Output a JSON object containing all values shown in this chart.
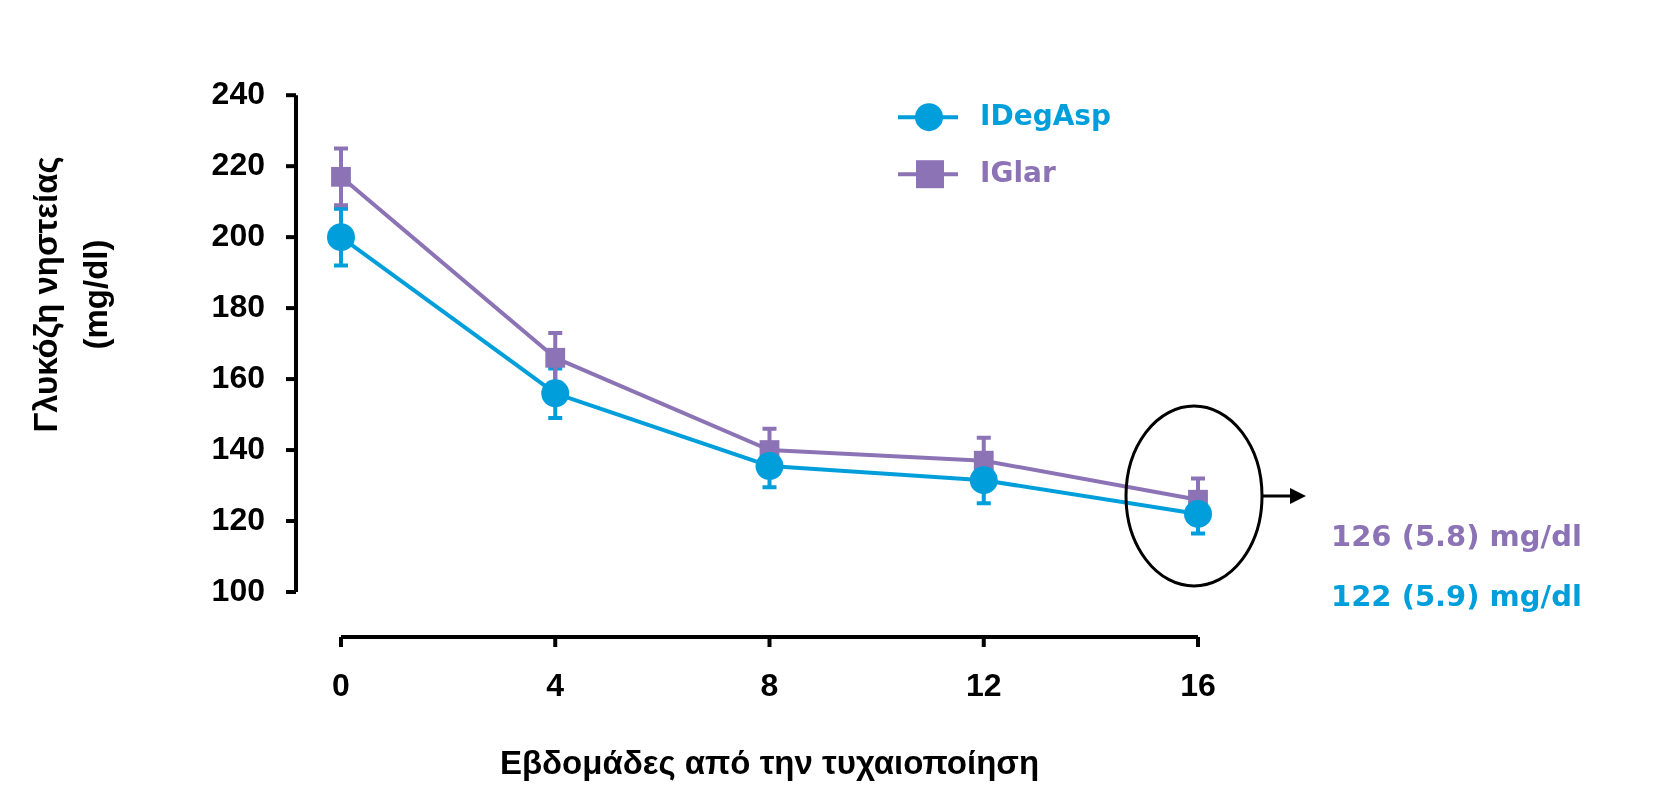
{
  "chart_data": {
    "type": "line",
    "xlabel": "Εβδομάδες από την τυχαιοποίηση",
    "ylabel": "Γλυκόζη νηστείας (mg/dl)",
    "x": [
      0,
      4,
      8,
      12,
      16
    ],
    "series": [
      {
        "name": "IDegAsp",
        "color": "#009fdb",
        "marker": "circle",
        "values": [
          200,
          156,
          135.5,
          131.5,
          122
        ],
        "errors": [
          8,
          7,
          6,
          6.5,
          5.5
        ]
      },
      {
        "name": "IGlar",
        "color": "#8c73b5",
        "marker": "square",
        "values": [
          217,
          166,
          140,
          137,
          126
        ],
        "errors": [
          8,
          7,
          6,
          6.5,
          6
        ]
      }
    ],
    "xlim": [
      0,
      16
    ],
    "xticks": [
      0,
      4,
      8,
      12,
      16
    ],
    "ylim": [
      100,
      240
    ],
    "yticks": [
      100,
      120,
      140,
      160,
      180,
      200,
      220,
      240
    ],
    "grid": false,
    "legend": "top right",
    "annotations": [
      "126 (5.8) mg/dl",
      "122 (5.9) mg/dl"
    ]
  }
}
